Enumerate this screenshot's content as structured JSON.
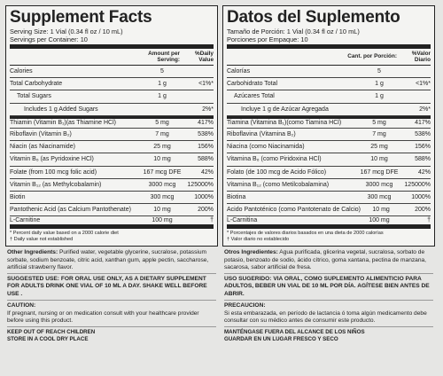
{
  "panels": [
    {
      "title": "Supplement Facts",
      "serving_size": "Serving Size: 1 Vial (0.34 fl oz / 10 mL)",
      "servings": "Servings per Container: 10",
      "amount_header": "Amount per Serving:",
      "dv_header": "%Daily Value",
      "rows": [
        {
          "name": "Calories",
          "amount": "5",
          "level": 0
        },
        {
          "name": "Total Carbohydrate",
          "amount": "1 g",
          "dv": "<1%*",
          "level": 0
        },
        {
          "name": "Total Sugars",
          "amount": "1 g",
          "level": 1
        },
        {
          "name": "Includes 1 g Added Sugars",
          "dv": "2%*",
          "level": 2
        },
        {
          "name": "Thiamin (Vitamin B₁)(as Thiamine HCl)",
          "amount": "5 mg",
          "dv": "417%",
          "level": 0
        },
        {
          "name": "Riboflavin (Vitamin B₂)",
          "amount": "7 mg",
          "dv": "538%",
          "level": 0
        },
        {
          "name": "Niacin (as Niacinamide)",
          "amount": "25 mg",
          "dv": "156%",
          "level": 0
        },
        {
          "name": "Vitamin B₆ (as Pyridoxine HCl)",
          "amount": "10 mg",
          "dv": "588%",
          "level": 0
        },
        {
          "name": "Folate (from 100 mcg folic acid)",
          "amount": "167 mcg DFE",
          "dv": "42%",
          "level": 0
        },
        {
          "name": "Vitamin B₁₂ (as Methylcobalamin)",
          "amount": "3000 mcg",
          "dv": "125000%",
          "level": 0
        },
        {
          "name": "Biotin",
          "amount": "300 mcg",
          "dv": "1000%",
          "level": 0
        },
        {
          "name": "Pantothenic Acid (as Calcium Pantothenate)",
          "amount": "10 mg",
          "dv": "200%",
          "level": 0
        },
        {
          "name": "L-Carnitine",
          "amount": "100 mg",
          "dv": "†",
          "level": 0
        }
      ],
      "footnotes": [
        "* Percent daily value based on a 2000 calorie diet",
        "† Daily value not established"
      ],
      "other_label": "Other Ingredients:",
      "other_text": "Purified water, vegetable glycerine, sucralose, potassium sorbate, sodium benzoate, citric acid, xanthan gum, apple pectin, saccharose, artificial strawberry flavor.",
      "suggested_use": "SUGGESTED USE: FOR ORAL USE ONLY, AS A DIETARY SUPPLEMENT FOR ADULTS DRINK ONE VIAL OF 10 ML A DAY.  SHAKE WELL BEFORE USE .",
      "caution_label": "CAUTION:",
      "caution_text": "If pregnant, nursing or on medication consult with your healthcare provider before using this product.",
      "storage": [
        "KEEP OUT OF REACH CHILDREN",
        "STORE IN A COOL DRY PLACE"
      ]
    },
    {
      "title": "Datos del Suplemento",
      "serving_size": "Tamaño de Porción: 1 Vial (0.34 fl oz / 10 mL)",
      "servings": "Porciones por Empaque: 10",
      "amount_header": "Cant. por Porción:",
      "dv_header": "%Valor Diario",
      "rows": [
        {
          "name": "Calorías",
          "amount": "5",
          "level": 0
        },
        {
          "name": "Carbohidrato Total",
          "amount": "1 g",
          "dv": "<1%*",
          "level": 0
        },
        {
          "name": "Azúcares Total",
          "amount": "1 g",
          "level": 1
        },
        {
          "name": "Incluye 1 g de Azúcar Agregada",
          "dv": "2%*",
          "level": 2
        },
        {
          "name": "Tiamina (Vitamina B₁)(como Tiamina HCl)",
          "amount": "5 mg",
          "dv": "417%",
          "level": 0
        },
        {
          "name": "Riboflavina (Vitamina B₂)",
          "amount": "7 mg",
          "dv": "538%",
          "level": 0
        },
        {
          "name": "Niacina (como Niacinamida)",
          "amount": "25 mg",
          "dv": "156%",
          "level": 0
        },
        {
          "name": "Vitamina B₆ (como Piridoxina HCl)",
          "amount": "10 mg",
          "dv": "588%",
          "level": 0
        },
        {
          "name": "Folato (de 100 mcg de Acido Fólico)",
          "amount": "167 mcg DFE",
          "dv": "42%",
          "level": 0
        },
        {
          "name": "Vitamina B₁₂ (como Metilcobalamina)",
          "amount": "3000 mcg",
          "dv": "125000%",
          "level": 0
        },
        {
          "name": "Biotina",
          "amount": "300 mcg",
          "dv": "1000%",
          "level": 0
        },
        {
          "name": "Acido Pantoténico (como Pantotenato de Calcio)",
          "amount": "10 mg",
          "dv": "200%",
          "level": 0
        },
        {
          "name": "L-Carnitina",
          "amount": "100 mg",
          "dv": "†",
          "level": 0
        }
      ],
      "footnotes": [
        "* Porcentajes de valores diarios basados en una dieta de 2000 calorías",
        "† Valor diario no establecido"
      ],
      "other_label": "Otros Ingredientes:",
      "other_text": "Agua purificada, glicerina vegetal, sucralosa, sorbato de potasio, benzoato de sodio, ácido cítrico, goma xantana, pectina de manzana, sacarosa, sabor artificial de fresa.",
      "suggested_use": "USO SUGERIDO: VIA ORAL, COMO SUPLEMENTO ALIMENTICIO PARA ADULTOS, BEBER UN VIAL DE 10 ML POR DÍA. AGÍTESE BIEN ANTES DE ABRIR.",
      "caution_label": "PRECAUCION:",
      "caution_text": "Si esta embarazada, en período de lactancia ó toma algún medicamento debe consultar con su médico antes de consumir este producto.",
      "storage": [
        "MANTÉNGASE FUERA DEL ALCANCE DE LOS NIÑOS",
        "GUARDAR EN UN LUGAR FRESCO Y SECO"
      ]
    }
  ]
}
